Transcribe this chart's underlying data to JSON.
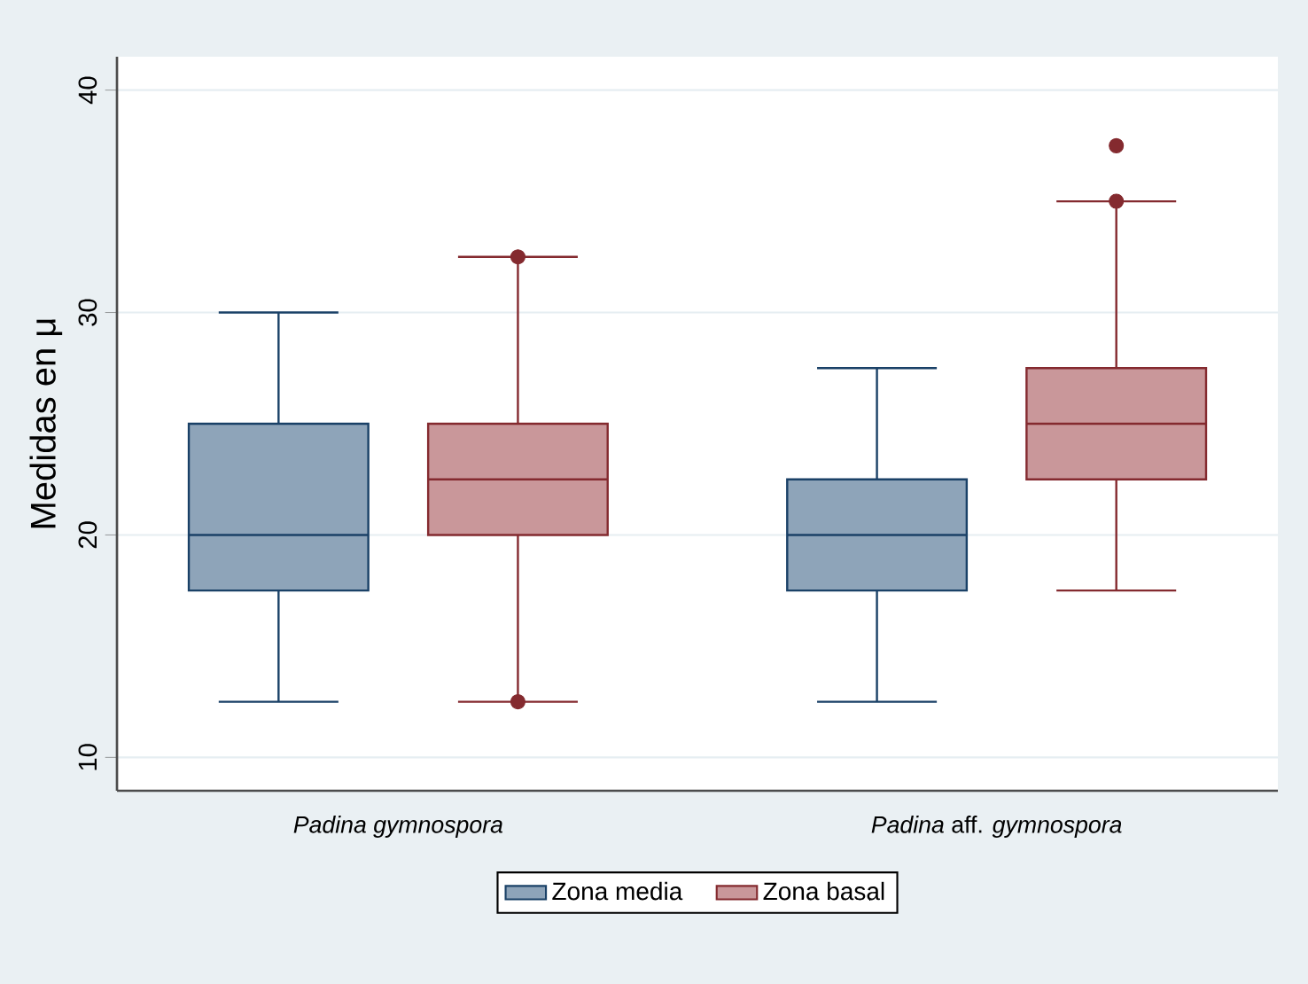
{
  "chart_data": {
    "type": "box",
    "categories": [
      "*Padina gymnospora*",
      "*Padina* aff. *gymnospora*"
    ],
    "ylabel": "Medidas en μ",
    "ylim": [
      8.5,
      41.5
    ],
    "yticks": [
      10,
      20,
      30,
      40
    ],
    "grid": "y",
    "legend": "bottom",
    "series": [
      {
        "name": "Zona media",
        "color": "#8ea4b9",
        "boxes": [
          {
            "low": 12.5,
            "q1": 17.5,
            "median": 20,
            "q3": 25,
            "high": 30
          },
          {
            "low": 12.5,
            "q1": 17.5,
            "median": 20,
            "q3": 22.5,
            "high": 27.5
          }
        ]
      },
      {
        "name": "Zona basal",
        "color": "#c9979a",
        "boxes": [
          {
            "low": 12.5,
            "q1": 20,
            "median": 22.5,
            "q3": 25,
            "high": 32.5,
            "outliers": [
              32.5,
              12.5
            ]
          },
          {
            "low": 17.5,
            "q1": 22.5,
            "median": 25,
            "q3": 27.5,
            "high": 35,
            "outliers": [
              35,
              37.5
            ]
          }
        ]
      }
    ]
  }
}
